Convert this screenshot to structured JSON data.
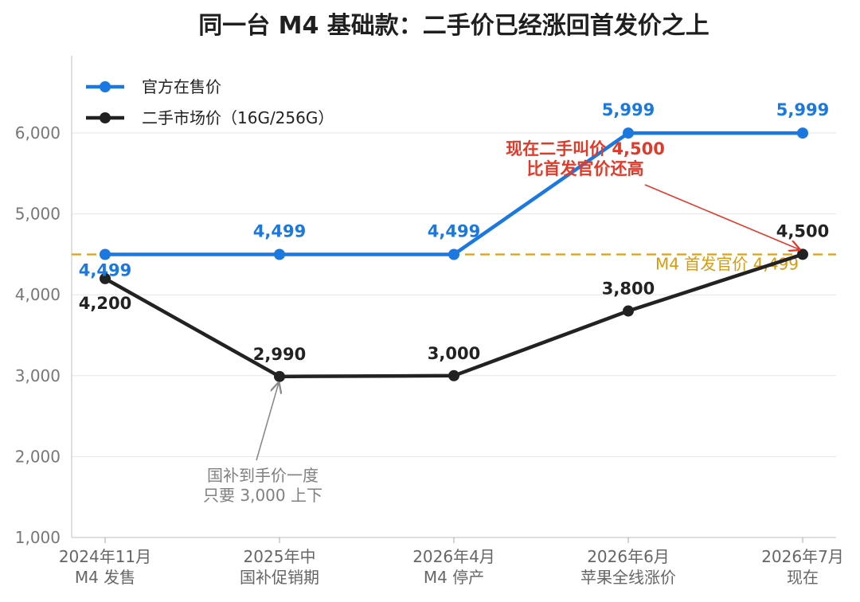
{
  "colors": {
    "official": "#1a78e0",
    "used": "#222222",
    "reference": "#e0a11a",
    "highlight": "#e03a2a",
    "note": "#8a8a8a",
    "grid": "#e6e6e6"
  },
  "chart_data": {
    "type": "line",
    "title": "同一台 M4 基础款：二手价已经涨回首发价之上",
    "xlabel": "",
    "ylabel": "",
    "categories": [
      [
        "2024年11月",
        "M4 发售"
      ],
      [
        "2025年中",
        "国补促销期"
      ],
      [
        "2026年4月",
        "M4 停产"
      ],
      [
        "2026年6月",
        "苹果全线涨价"
      ],
      [
        "2026年7月",
        "现在"
      ]
    ],
    "series": [
      {
        "name": "官方在售价",
        "values": [
          4499,
          4499,
          4499,
          5999,
          5999
        ],
        "labels": [
          "4,499",
          "4,499",
          "4,499",
          "5,999",
          "5,999"
        ]
      },
      {
        "name": "二手市场价（16G/256G）",
        "values": [
          4200,
          2990,
          3000,
          3800,
          4500
        ],
        "labels": [
          "4,200",
          "2,990",
          "3,000",
          "3,800",
          "4,500"
        ]
      }
    ],
    "ylim": [
      1000,
      6500
    ],
    "yticks": [
      1000,
      2000,
      3000,
      4000,
      5000,
      6000
    ],
    "ytick_labels": [
      "1,000",
      "2,000",
      "3,000",
      "4,000",
      "5,000",
      "6,000"
    ],
    "grid": "horizontal",
    "legend": "top-left",
    "reference_line": {
      "value": 4499,
      "label": "M4 首发官价 4,499"
    },
    "annotations": [
      {
        "lines": [
          "现在二手叫价 4,500",
          "比首发官价还高"
        ],
        "target_index": 4,
        "target_value": 4500,
        "style": "highlight"
      },
      {
        "lines": [
          "国补到手价一度",
          "只要 3,000 上下"
        ],
        "target_index": 1,
        "target_value": 2990,
        "style": "note"
      }
    ]
  }
}
